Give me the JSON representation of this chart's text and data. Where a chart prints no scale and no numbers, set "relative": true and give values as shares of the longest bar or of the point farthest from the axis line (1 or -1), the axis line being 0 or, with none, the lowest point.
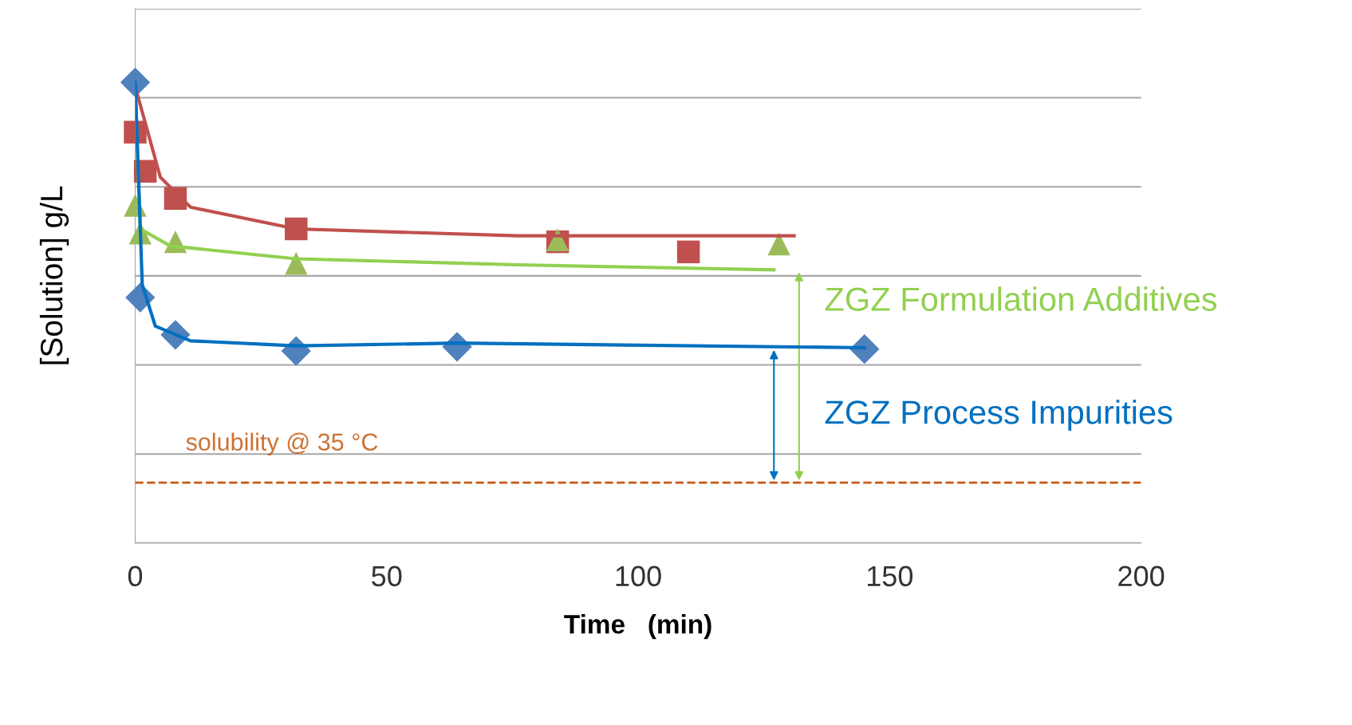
{
  "chart_data": {
    "type": "scatter",
    "relative": true,
    "xlabel": "Time   (min)",
    "ylabel": "[Solution] g/L",
    "xlim": [
      0,
      200
    ],
    "xticks": [
      0,
      50,
      100,
      150,
      200
    ],
    "grid": "y",
    "tick_labels": "x",
    "legend": "right",
    "series": [
      {
        "marker": "square",
        "color": "#c0504d",
        "x": [
          0,
          2,
          8,
          32,
          84,
          110
        ],
        "values": [
          0.892,
          0.807,
          0.748,
          0.682,
          0.654,
          0.632
        ]
      },
      {
        "type": "line",
        "marker": "none",
        "color": "#c0504d",
        "x": [
          0,
          5,
          11,
          32,
          76,
          131
        ],
        "values": [
          0.991,
          0.794,
          0.729,
          0.682,
          0.667,
          0.667
        ]
      },
      {
        "marker": "triangle",
        "color": "#9bbb59",
        "x": [
          0,
          1,
          8,
          32,
          84,
          128
        ],
        "values": [
          0.733,
          0.673,
          0.654,
          0.607,
          0.658,
          0.649
        ]
      },
      {
        "type": "line",
        "marker": "none",
        "name": "ZGZ Formulation Additives",
        "color": "#92d050",
        "x": [
          0,
          1,
          7,
          32,
          76,
          127
        ],
        "values": [
          0.98,
          0.682,
          0.645,
          0.617,
          0.604,
          0.593
        ]
      },
      {
        "marker": "diamond",
        "color": "#4f81bd",
        "x": [
          0,
          1,
          8,
          32,
          64,
          145
        ],
        "values": [
          1.0,
          0.533,
          0.452,
          0.417,
          0.426,
          0.421
        ]
      },
      {
        "type": "line",
        "marker": "none",
        "name": "ZGZ Process Impurities",
        "color": "#0070c0",
        "x": [
          0,
          1.4,
          4,
          11,
          32,
          64,
          145
        ],
        "values": [
          1.0,
          0.561,
          0.471,
          0.439,
          0.428,
          0.434,
          0.424
        ]
      }
    ],
    "ref_lines": [
      {
        "axis": "y",
        "value": 0.131,
        "label": "solubility @ 35 °C",
        "color": "#c55a11",
        "line_style": "dashed"
      }
    ]
  }
}
